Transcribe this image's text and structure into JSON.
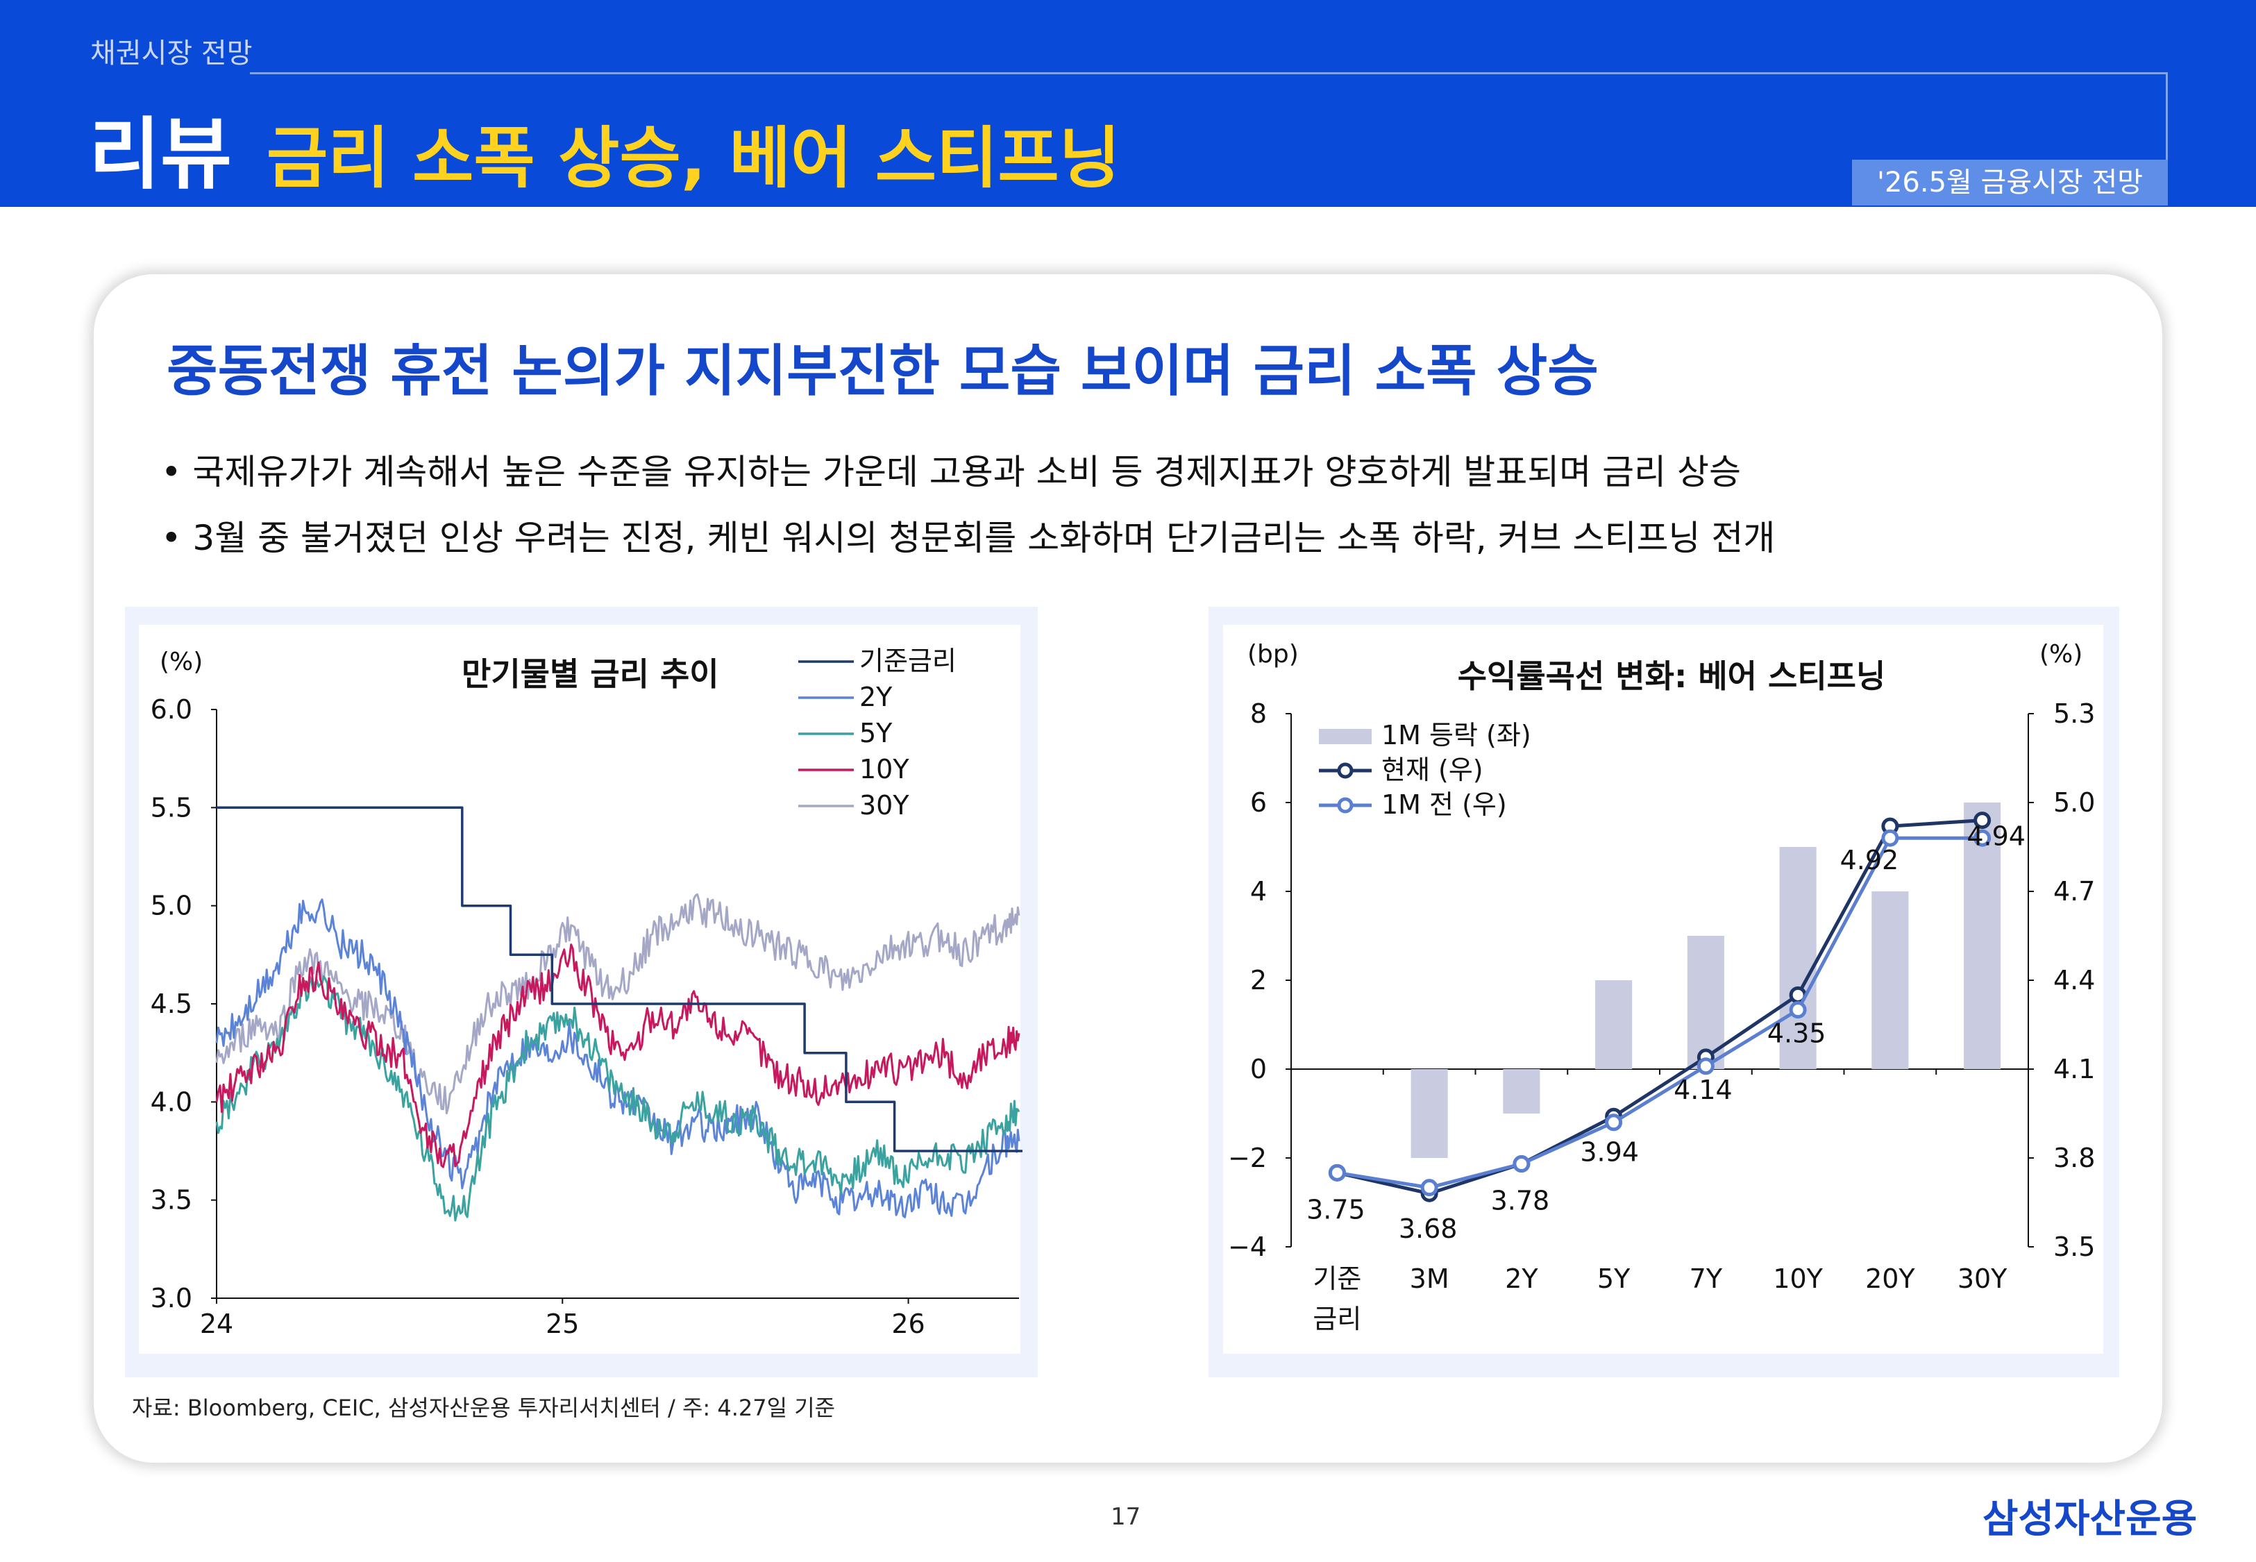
{
  "header": {
    "section": "채권시장 전망",
    "review": "리뷰",
    "headline": "금리 소폭 상승, 베어 스티프닝",
    "edition": "'26.5월 금융시장 전망"
  },
  "card": {
    "title": "중동전쟁 휴전 논의가 지지부진한 모습 보이며 금리 소폭 상승",
    "bullets": [
      "• 국제유가가 계속해서 높은 수준을 유지하는 가운데 고용과 소비 등 경제지표가 양호하게 발표되며 금리 상승",
      "• 3월 중 불거졌던 인상 우려는 진정, 케빈 워시의 청문회를 소화하며 단기금리는 소폭 하락, 커브 스티프닝 전개"
    ]
  },
  "source": "자료: Bloomberg, CEIC, 삼성자산운용 투자리서치센터 / 주: 4.27일 기준",
  "page_number": "17",
  "logo": "삼성자산운용",
  "colors": {
    "header_bg": "#0a4ad9",
    "headline": "#ffd21f",
    "title_blue": "#1447c9",
    "policy": "#1f3a6e",
    "y2": "#5b84d8",
    "y5": "#3aa3a0",
    "y10": "#c8185e",
    "y30": "#a4a8c6",
    "bar": "#c9cce0",
    "current": "#1e3566",
    "prev": "#5a7fd0"
  },
  "chart_data": [
    {
      "type": "line",
      "title": "만기물별 금리 추이",
      "ylabel": "(%)",
      "ylim": [
        3.0,
        6.0
      ],
      "yticks": [
        "3.0",
        "3.5",
        "4.0",
        "4.5",
        "5.0",
        "5.5",
        "6.0"
      ],
      "xticks": [
        "24",
        "25",
        "26"
      ],
      "x_range": [
        "2024-01",
        "2026-04"
      ],
      "legend": [
        "기준금리",
        "2Y",
        "5Y",
        "10Y",
        "30Y"
      ],
      "series": [
        {
          "name": "기준금리",
          "step": true,
          "x": [
            2024.0,
            2024.71,
            2024.71,
            2024.85,
            2024.85,
            2024.97,
            2024.97,
            2025.7,
            2025.7,
            2025.82,
            2025.82,
            2025.96,
            2025.96,
            2026.33
          ],
          "values": [
            5.5,
            5.5,
            5.0,
            5.0,
            4.75,
            4.75,
            4.5,
            4.5,
            4.25,
            4.25,
            4.0,
            4.0,
            3.75,
            3.75
          ]
        },
        {
          "name": "2Y",
          "x": [
            2024.0,
            2024.06,
            2024.12,
            2024.18,
            2024.24,
            2024.3,
            2024.36,
            2024.42,
            2024.48,
            2024.54,
            2024.6,
            2024.66,
            2024.72,
            2024.78,
            2024.84,
            2024.9,
            2024.96,
            2025.02,
            2025.08,
            2025.14,
            2025.2,
            2025.26,
            2025.32,
            2025.38,
            2025.44,
            2025.5,
            2025.56,
            2025.62,
            2025.68,
            2025.74,
            2025.8,
            2025.86,
            2025.92,
            2025.98,
            2026.04,
            2026.1,
            2026.16,
            2026.22,
            2026.28,
            2026.32
          ],
          "values": [
            4.3,
            4.4,
            4.55,
            4.7,
            4.95,
            5.0,
            4.8,
            4.75,
            4.6,
            4.35,
            4.0,
            3.7,
            3.6,
            3.95,
            4.2,
            4.3,
            4.25,
            4.35,
            4.2,
            4.05,
            4.0,
            3.9,
            3.8,
            3.9,
            3.85,
            3.9,
            3.95,
            3.7,
            3.55,
            3.6,
            3.5,
            3.5,
            3.55,
            3.45,
            3.55,
            3.5,
            3.45,
            3.65,
            3.8,
            3.8
          ]
        },
        {
          "name": "5Y",
          "x": [
            2024.0,
            2024.06,
            2024.12,
            2024.18,
            2024.24,
            2024.3,
            2024.36,
            2024.42,
            2024.48,
            2024.54,
            2024.6,
            2024.66,
            2024.72,
            2024.78,
            2024.84,
            2024.9,
            2024.96,
            2025.02,
            2025.08,
            2025.14,
            2025.2,
            2025.26,
            2025.32,
            2025.38,
            2025.44,
            2025.5,
            2025.56,
            2025.62,
            2025.68,
            2025.74,
            2025.8,
            2025.86,
            2025.92,
            2025.98,
            2026.04,
            2026.1,
            2026.16,
            2026.22,
            2026.28,
            2026.32
          ],
          "values": [
            3.9,
            4.05,
            4.2,
            4.3,
            4.55,
            4.6,
            4.45,
            4.35,
            4.2,
            4.05,
            3.75,
            3.5,
            3.45,
            3.85,
            4.1,
            4.3,
            4.35,
            4.45,
            4.3,
            4.1,
            4.0,
            3.9,
            3.85,
            4.0,
            3.95,
            3.9,
            3.9,
            3.75,
            3.7,
            3.7,
            3.6,
            3.65,
            3.75,
            3.6,
            3.7,
            3.75,
            3.7,
            3.8,
            3.9,
            3.95
          ]
        },
        {
          "name": "10Y",
          "x": [
            2024.0,
            2024.06,
            2024.12,
            2024.18,
            2024.24,
            2024.3,
            2024.36,
            2024.42,
            2024.48,
            2024.54,
            2024.6,
            2024.66,
            2024.72,
            2024.78,
            2024.84,
            2024.9,
            2024.96,
            2025.02,
            2025.08,
            2025.14,
            2025.2,
            2025.26,
            2025.32,
            2025.38,
            2025.44,
            2025.5,
            2025.56,
            2025.62,
            2025.68,
            2025.74,
            2025.8,
            2025.86,
            2025.92,
            2025.98,
            2026.04,
            2026.1,
            2026.16,
            2026.22,
            2026.28,
            2026.32
          ],
          "values": [
            4.0,
            4.1,
            4.2,
            4.25,
            4.6,
            4.65,
            4.45,
            4.35,
            4.3,
            4.2,
            3.85,
            3.7,
            3.8,
            4.2,
            4.4,
            4.55,
            4.6,
            4.75,
            4.55,
            4.3,
            4.25,
            4.45,
            4.4,
            4.5,
            4.4,
            4.35,
            4.3,
            4.15,
            4.1,
            4.05,
            4.1,
            4.1,
            4.2,
            4.15,
            4.2,
            4.25,
            4.1,
            4.25,
            4.3,
            4.35
          ]
        },
        {
          "name": "30Y",
          "x": [
            2024.0,
            2024.06,
            2024.12,
            2024.18,
            2024.24,
            2024.3,
            2024.36,
            2024.42,
            2024.48,
            2024.54,
            2024.6,
            2024.66,
            2024.72,
            2024.78,
            2024.84,
            2024.9,
            2024.96,
            2025.02,
            2025.08,
            2025.14,
            2025.2,
            2025.26,
            2025.32,
            2025.38,
            2025.44,
            2025.5,
            2025.56,
            2025.62,
            2025.68,
            2025.74,
            2025.8,
            2025.86,
            2025.92,
            2025.98,
            2026.04,
            2026.1,
            2026.16,
            2026.22,
            2026.28,
            2026.32
          ],
          "values": [
            4.2,
            4.3,
            4.4,
            4.35,
            4.7,
            4.7,
            4.55,
            4.5,
            4.45,
            4.35,
            4.1,
            4.0,
            4.2,
            4.5,
            4.55,
            4.6,
            4.75,
            4.9,
            4.7,
            4.55,
            4.65,
            4.85,
            4.9,
            5.0,
            4.95,
            4.9,
            4.85,
            4.8,
            4.75,
            4.7,
            4.6,
            4.65,
            4.75,
            4.8,
            4.8,
            4.85,
            4.75,
            4.85,
            4.9,
            4.95
          ]
        }
      ]
    },
    {
      "type": "bar",
      "title": "수익률곡선 변화: 베어 스티프닝",
      "ylabel_left": "(bp)",
      "ylabel_right": "(%)",
      "ylim_left": [
        -4,
        8
      ],
      "yticks_left": [
        "−4",
        "−2",
        "0",
        "2",
        "4",
        "6",
        "8"
      ],
      "ylim_right": [
        3.5,
        5.3
      ],
      "yticks_right": [
        "3.5",
        "3.8",
        "4.1",
        "4.4",
        "4.7",
        "5.0",
        "5.3"
      ],
      "categories": [
        [
          "기준",
          "금리"
        ],
        [
          "3M"
        ],
        [
          "2Y"
        ],
        [
          "5Y"
        ],
        [
          "7Y"
        ],
        [
          "10Y"
        ],
        [
          "20Y"
        ],
        [
          "30Y"
        ]
      ],
      "legend": [
        "1M 등락 (좌)",
        "현재 (우)",
        "1M 전 (우)"
      ],
      "series": [
        {
          "name": "1M 등락 (좌)",
          "axis": "left",
          "values": [
            0,
            -2,
            -1,
            2,
            3,
            5,
            4,
            6
          ]
        },
        {
          "name": "현재 (우)",
          "axis": "right",
          "values": [
            3.75,
            3.68,
            3.78,
            3.94,
            4.14,
            4.35,
            4.92,
            4.94
          ]
        },
        {
          "name": "1M 전 (우)",
          "axis": "right",
          "values": [
            3.75,
            3.7,
            3.78,
            3.92,
            4.11,
            4.3,
            4.88,
            4.88
          ]
        }
      ],
      "data_labels": [
        "3.75",
        "3.68",
        "3.78",
        "3.94",
        "4.14",
        "4.35",
        "4.92",
        "4.94"
      ]
    }
  ]
}
